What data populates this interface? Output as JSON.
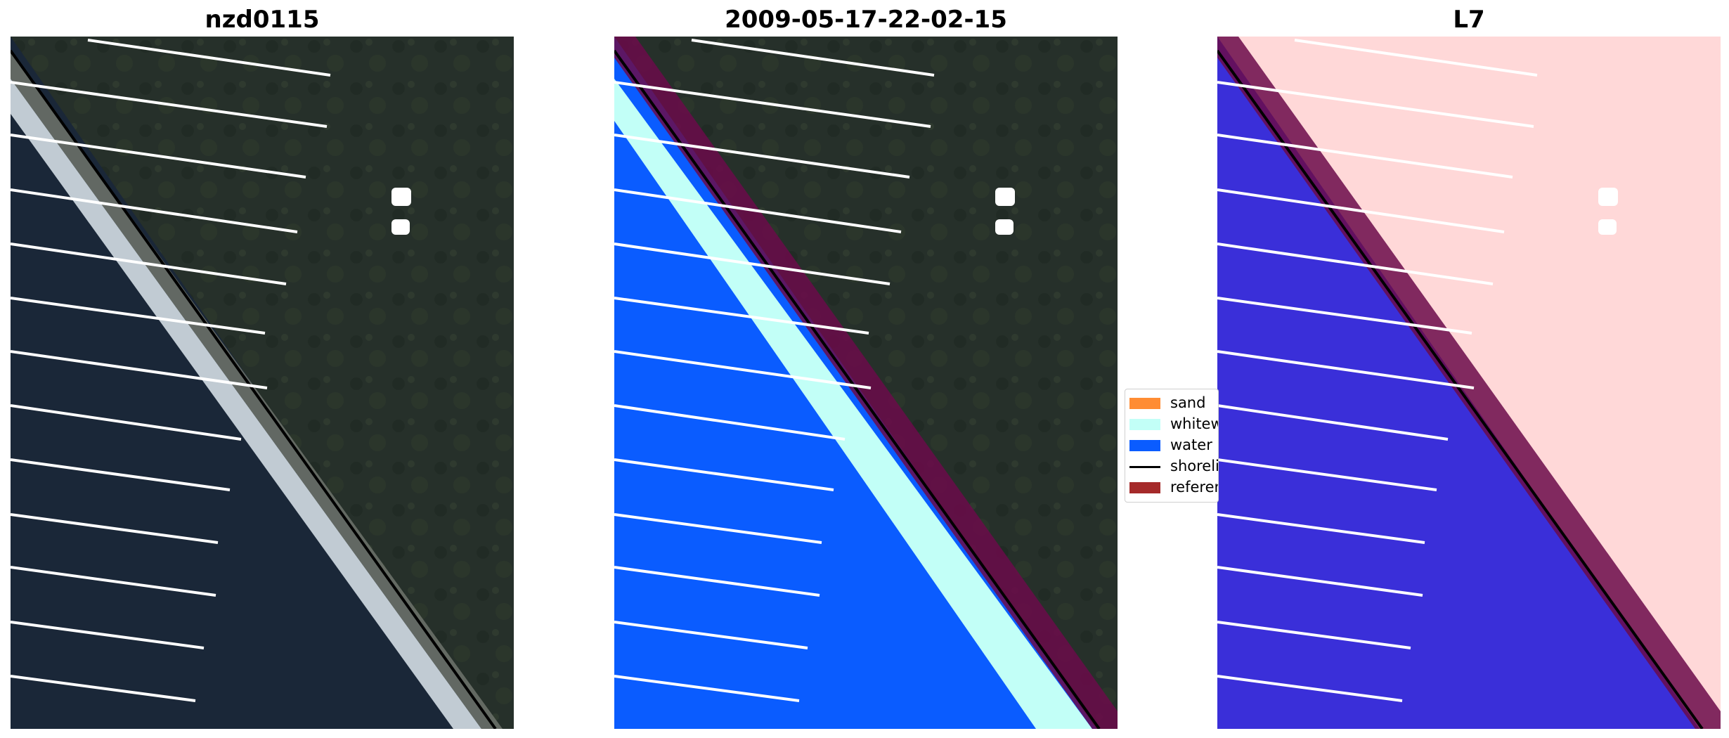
{
  "panels": [
    {
      "title": "nzd0115"
    },
    {
      "title": "2009-05-17-22-02-15"
    },
    {
      "title": "L7"
    }
  ],
  "legend": {
    "items": [
      {
        "label": "sand",
        "type": "swatch",
        "color": "#ff8c33"
      },
      {
        "label": "whitewater",
        "type": "swatch",
        "color": "#c2fff7"
      },
      {
        "label": "water",
        "type": "swatch",
        "color": "#0a5cff"
      },
      {
        "label": "shoreline",
        "type": "line",
        "color": "#000000"
      },
      {
        "label": "reference shoreline buffer",
        "type": "swatch",
        "color": "#a52a2a"
      }
    ]
  },
  "colors": {
    "land": "#26302a",
    "ocean": "#1a2738",
    "surf": "#dfe9ee",
    "water_class": "#0a5cff",
    "whitewater_class": "#c2fff7",
    "buffer": "#6b0a4a",
    "index_positive": "#ffd8d8",
    "index_negative": "#3a2fd9",
    "transect": "#ffffff",
    "shoreline": "#000000"
  }
}
